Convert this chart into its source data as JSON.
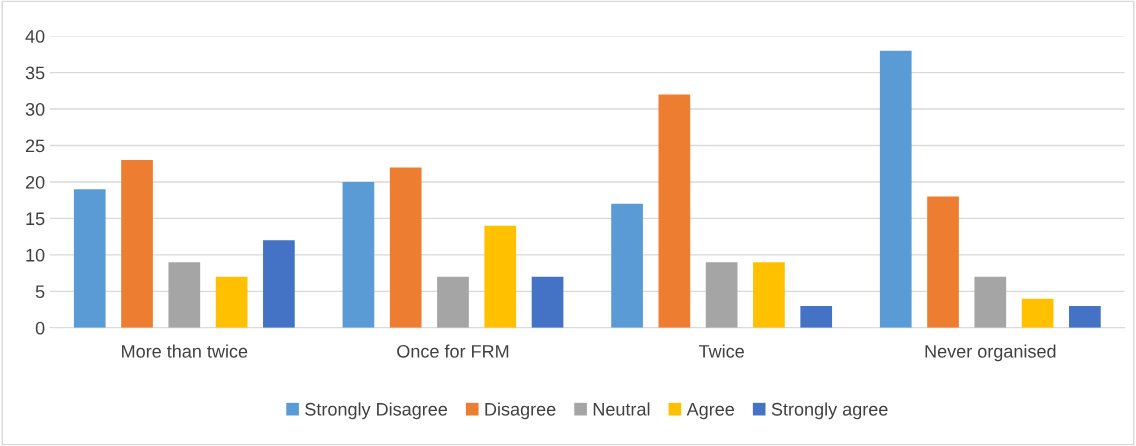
{
  "chart_data": {
    "type": "bar",
    "categories": [
      "More than twice",
      "Once for FRM",
      "Twice",
      "Never organised"
    ],
    "series": [
      {
        "name": "Strongly Disagree",
        "color": "#5b9bd5",
        "values": [
          19,
          20,
          17,
          38
        ]
      },
      {
        "name": "Disagree",
        "color": "#ed7d31",
        "values": [
          23,
          22,
          32,
          18
        ]
      },
      {
        "name": "Neutral",
        "color": "#a5a5a5",
        "values": [
          9,
          7,
          9,
          7
        ]
      },
      {
        "name": "Agree",
        "color": "#ffc000",
        "values": [
          7,
          14,
          9,
          4
        ]
      },
      {
        "name": "Strongly agree",
        "color": "#4472c4",
        "values": [
          12,
          7,
          3,
          3
        ]
      }
    ],
    "ylim": [
      0,
      40
    ],
    "yticks": [
      0,
      5,
      10,
      15,
      20,
      25,
      30,
      35,
      40
    ],
    "grid": "y",
    "legend": "bottom"
  }
}
